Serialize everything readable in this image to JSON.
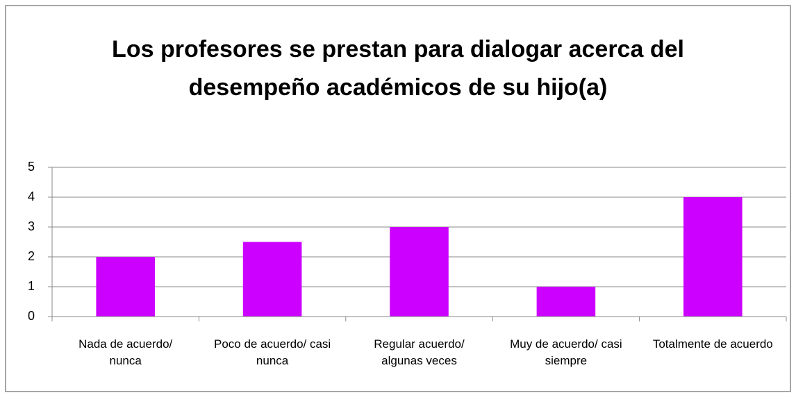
{
  "chart_data": {
    "type": "bar",
    "title": "Los profesores se prestan para dialogar acerca del desempeño académicos de su hijo(a)",
    "categories": [
      "Nada de acuerdo/ nunca",
      "Poco de acuerdo/ casi nunca",
      "Regular acuerdo/ algunas veces",
      "Muy de acuerdo/ casi siempre",
      "Totalmente de acuerdo"
    ],
    "values": [
      2,
      2.5,
      3,
      1,
      4
    ],
    "color": "#cc00ff",
    "ylim": [
      0,
      5
    ],
    "yticks": [
      0,
      1,
      2,
      3,
      4,
      5
    ],
    "grid": true
  }
}
